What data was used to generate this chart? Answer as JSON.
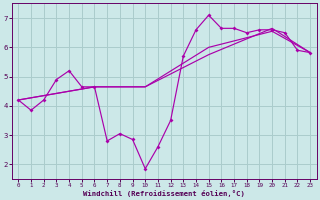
{
  "xlabel": "Windchill (Refroidissement éolien,°C)",
  "bg_color": "#cce8e8",
  "grid_color": "#aacccc",
  "line_color": "#aa00aa",
  "line1_x": [
    0,
    1,
    2,
    3,
    4,
    5,
    6,
    7,
    8,
    9,
    10,
    11,
    12,
    13,
    14,
    15,
    16,
    17,
    18,
    19,
    20,
    21,
    22,
    23
  ],
  "line1_y": [
    4.2,
    3.85,
    4.2,
    4.9,
    5.2,
    4.65,
    4.65,
    2.8,
    3.05,
    2.85,
    1.85,
    2.6,
    3.5,
    5.7,
    6.6,
    7.1,
    6.65,
    6.65,
    6.5,
    6.6,
    6.6,
    6.5,
    5.9,
    5.82
  ],
  "line2_x": [
    0,
    6,
    10,
    15,
    20,
    23
  ],
  "line2_y": [
    4.2,
    4.65,
    4.65,
    6.0,
    6.55,
    5.82
  ],
  "line3_x": [
    0,
    6,
    10,
    15,
    20,
    23
  ],
  "line3_y": [
    4.2,
    4.65,
    4.65,
    5.75,
    6.65,
    5.82
  ],
  "ylim": [
    1.5,
    7.5
  ],
  "xlim": [
    -0.5,
    23.5
  ],
  "yticks": [
    2,
    3,
    4,
    5,
    6,
    7
  ],
  "xticks": [
    0,
    1,
    2,
    3,
    4,
    5,
    6,
    7,
    8,
    9,
    10,
    11,
    12,
    13,
    14,
    15,
    16,
    17,
    18,
    19,
    20,
    21,
    22,
    23
  ]
}
